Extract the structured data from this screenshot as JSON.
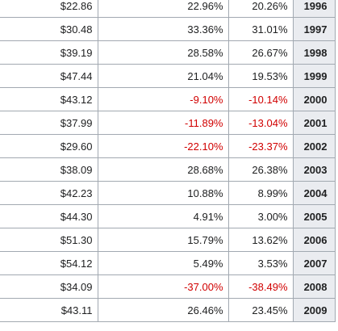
{
  "table": {
    "colors": {
      "negative": "#d10000",
      "year_background": "#eaecf0",
      "border": "#a2a9b1"
    },
    "rows": [
      {
        "value": "$22.86",
        "return_a": "22.96%",
        "return_b": "20.26%",
        "year": "1996"
      },
      {
        "value": "$30.48",
        "return_a": "33.36%",
        "return_b": "31.01%",
        "year": "1997"
      },
      {
        "value": "$39.19",
        "return_a": "28.58%",
        "return_b": "26.67%",
        "year": "1998"
      },
      {
        "value": "$47.44",
        "return_a": "21.04%",
        "return_b": "19.53%",
        "year": "1999"
      },
      {
        "value": "$43.12",
        "return_a": "-9.10%",
        "return_b": "-10.14%",
        "year": "2000"
      },
      {
        "value": "$37.99",
        "return_a": "-11.89%",
        "return_b": "-13.04%",
        "year": "2001"
      },
      {
        "value": "$29.60",
        "return_a": "-22.10%",
        "return_b": "-23.37%",
        "year": "2002"
      },
      {
        "value": "$38.09",
        "return_a": "28.68%",
        "return_b": "26.38%",
        "year": "2003"
      },
      {
        "value": "$42.23",
        "return_a": "10.88%",
        "return_b": "8.99%",
        "year": "2004"
      },
      {
        "value": "$44.30",
        "return_a": "4.91%",
        "return_b": "3.00%",
        "year": "2005"
      },
      {
        "value": "$51.30",
        "return_a": "15.79%",
        "return_b": "13.62%",
        "year": "2006"
      },
      {
        "value": "$54.12",
        "return_a": "5.49%",
        "return_b": "3.53%",
        "year": "2007"
      },
      {
        "value": "$34.09",
        "return_a": "-37.00%",
        "return_b": "-38.49%",
        "year": "2008"
      },
      {
        "value": "$43.11",
        "return_a": "26.46%",
        "return_b": "23.45%",
        "year": "2009"
      }
    ]
  }
}
